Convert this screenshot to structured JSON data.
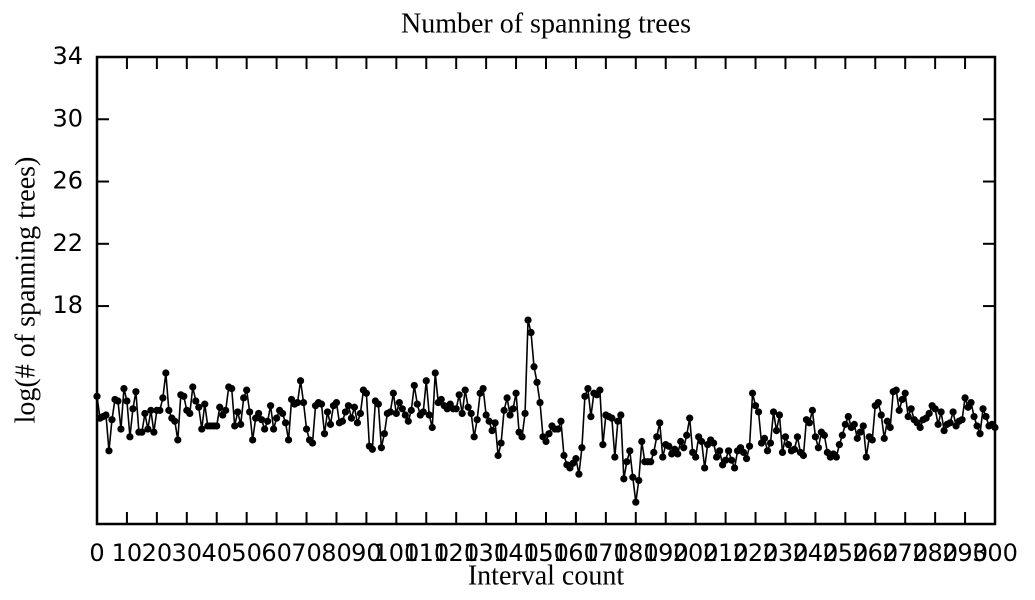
{
  "chart_data": {
    "type": "line",
    "title": "Number of spanning trees",
    "xlabel": "Interval count",
    "ylabel": "log(# of spanning trees)",
    "color": "#000000",
    "x": [
      0,
      1,
      2,
      3,
      4,
      5,
      6,
      7,
      8,
      9,
      10,
      11,
      12,
      13,
      14,
      15,
      16,
      17,
      18,
      19,
      20,
      21,
      22,
      23,
      24,
      25,
      26,
      27,
      28,
      29,
      30,
      31,
      32,
      33,
      34,
      35,
      36,
      37,
      38,
      39,
      40,
      41,
      42,
      43,
      44,
      45,
      46,
      47,
      48,
      49,
      50,
      51,
      52,
      53,
      54,
      55,
      56,
      57,
      58,
      59,
      60,
      61,
      62,
      63,
      64,
      65,
      66,
      67,
      68,
      69,
      70,
      71,
      72,
      73,
      74,
      75,
      76,
      77,
      78,
      79,
      80,
      81,
      82,
      83,
      84,
      85,
      86,
      87,
      88,
      89,
      90,
      91,
      92,
      93,
      94,
      95,
      96,
      97,
      98,
      99,
      100,
      101,
      102,
      103,
      104,
      105,
      106,
      107,
      108,
      109,
      110,
      111,
      112,
      113,
      114,
      115,
      116,
      117,
      118,
      119,
      120,
      121,
      122,
      123,
      124,
      125,
      126,
      127,
      128,
      129,
      130,
      131,
      132,
      133,
      134,
      135,
      136,
      137,
      138,
      139,
      140,
      141,
      142,
      143,
      144,
      145,
      146,
      147,
      148,
      149,
      150,
      151,
      152,
      153,
      154,
      155,
      156,
      157,
      158,
      159,
      160,
      161,
      162,
      163,
      164,
      165,
      166,
      167,
      168,
      169,
      170,
      171,
      172,
      173,
      174,
      175,
      176,
      177,
      178,
      179,
      180,
      181,
      182,
      183,
      184,
      185,
      186,
      187,
      188,
      189,
      190,
      191,
      192,
      193,
      194,
      195,
      196,
      197,
      198,
      199,
      200,
      201,
      202,
      203,
      204,
      205,
      206,
      207,
      208,
      209,
      210,
      211,
      212,
      213,
      214,
      215,
      216,
      217,
      218,
      219,
      220,
      221,
      222,
      223,
      224,
      225,
      226,
      227,
      228,
      229,
      230,
      231,
      232,
      233,
      234,
      235,
      236,
      237,
      238,
      239,
      240,
      241,
      242,
      243,
      244,
      245,
      246,
      247,
      248,
      249,
      250,
      251,
      252,
      253,
      254,
      255,
      256,
      257,
      258,
      259,
      260,
      261,
      262,
      263,
      264,
      265,
      266,
      267,
      268,
      269,
      270,
      271,
      272,
      273,
      274,
      275,
      276,
      277,
      278,
      279,
      280,
      281,
      282,
      283,
      284,
      285,
      286,
      287,
      288,
      289,
      290,
      291,
      292,
      293,
      294,
      295,
      296,
      297,
      298,
      299,
      300
    ],
    "values": [
      12.2,
      10.8,
      10.9,
      11.0,
      8.7,
      10.7,
      12.0,
      11.9,
      10.1,
      12.7,
      11.9,
      9.6,
      11.4,
      12.5,
      9.9,
      9.9,
      11.1,
      10.1,
      11.3,
      9.9,
      11.3,
      11.3,
      12.1,
      13.7,
      11.3,
      10.8,
      10.6,
      9.4,
      12.3,
      12.2,
      11.3,
      11.1,
      12.8,
      11.9,
      11.5,
      10.1,
      11.7,
      10.3,
      10.3,
      10.3,
      10.3,
      11.5,
      11.0,
      11.3,
      12.8,
      12.7,
      10.3,
      11.2,
      10.4,
      12.1,
      12.6,
      11.2,
      9.4,
      10.8,
      11.1,
      10.7,
      10.1,
      10.6,
      11.6,
      10.1,
      10.8,
      11.3,
      11.1,
      10.5,
      9.4,
      12.0,
      11.7,
      11.8,
      13.2,
      11.8,
      10.1,
      9.4,
      9.2,
      11.6,
      11.8,
      11.7,
      9.8,
      11.2,
      10.4,
      11.6,
      11.8,
      10.5,
      10.6,
      11.2,
      11.6,
      10.8,
      11.5,
      10.5,
      11.1,
      12.6,
      12.4,
      9.0,
      8.8,
      11.9,
      11.7,
      8.9,
      9.8,
      11.1,
      11.2,
      12.4,
      11.1,
      11.8,
      11.4,
      11.0,
      10.6,
      11.3,
      12.9,
      11.7,
      11.0,
      11.2,
      13.2,
      11.0,
      10.2,
      13.7,
      11.8,
      12.0,
      11.6,
      11.4,
      11.7,
      11.4,
      11.4,
      12.3,
      11.1,
      12.6,
      11.5,
      11.1,
      9.6,
      10.7,
      12.4,
      12.7,
      11.0,
      10.6,
      10.0,
      10.5,
      8.4,
      9.2,
      11.3,
      12.1,
      11.0,
      11.4,
      12.4,
      9.9,
      9.6,
      11.1,
      17.1,
      16.3,
      14.1,
      13.1,
      11.8,
      9.6,
      9.3,
      9.8,
      10.3,
      10.1,
      10.1,
      10.6,
      8.4,
      7.8,
      7.6,
      7.9,
      8.2,
      7.2,
      8.9,
      12.2,
      12.7,
      10.9,
      12.4,
      12.3,
      12.6,
      9.1,
      11.0,
      10.9,
      10.8,
      8.3,
      10.6,
      11.0,
      6.9,
      8.0,
      8.7,
      7.0,
      5.4,
      6.8,
      9.3,
      8.0,
      8.0,
      8.0,
      8.6,
      9.6,
      10.5,
      8.3,
      9.1,
      9.0,
      8.5,
      8.8,
      8.5,
      9.3,
      8.9,
      9.7,
      10.8,
      8.6,
      8.3,
      9.6,
      9.3,
      7.6,
      9.1,
      9.4,
      9.2,
      8.3,
      8.7,
      7.8,
      8.1,
      8.7,
      8.1,
      7.6,
      8.7,
      8.9,
      8.6,
      8.2,
      9.0,
      12.4,
      11.6,
      11.2,
      9.2,
      9.5,
      8.7,
      9.2,
      11.2,
      10.0,
      11.0,
      8.6,
      9.6,
      9.1,
      8.7,
      8.8,
      9.6,
      8.6,
      8.4,
      10.7,
      10.5,
      11.3,
      9.6,
      8.9,
      9.9,
      9.7,
      8.6,
      8.3,
      8.5,
      8.3,
      9.1,
      9.7,
      10.4,
      10.9,
      10.2,
      10.4,
      9.5,
      9.9,
      10.3,
      8.3,
      9.6,
      9.4,
      11.6,
      11.8,
      11.0,
      9.5,
      10.6,
      10.2,
      12.5,
      12.6,
      11.3,
      12.0,
      12.4,
      10.9,
      11.4,
      10.7,
      10.5,
      10.2,
      10.7,
      10.8,
      11.1,
      11.6,
      11.4,
      10.4,
      11.2,
      10.0,
      10.4,
      10.5,
      11.2,
      10.3,
      10.6,
      10.7,
      12.1,
      11.5,
      11.8,
      10.9,
      10.3,
      9.8,
      11.4,
      10.9,
      10.3,
      10.4,
      10.2
    ],
    "xlim": [
      0,
      300
    ],
    "xticks": [
      0,
      10,
      20,
      30,
      40,
      50,
      60,
      70,
      80,
      90,
      100,
      110,
      120,
      130,
      140,
      150,
      160,
      170,
      180,
      190,
      200,
      210,
      220,
      230,
      240,
      250,
      260,
      270,
      280,
      290,
      300
    ],
    "ylim": [
      4,
      34
    ],
    "yticks": [
      18,
      22,
      26,
      30,
      34
    ],
    "grid": false
  }
}
